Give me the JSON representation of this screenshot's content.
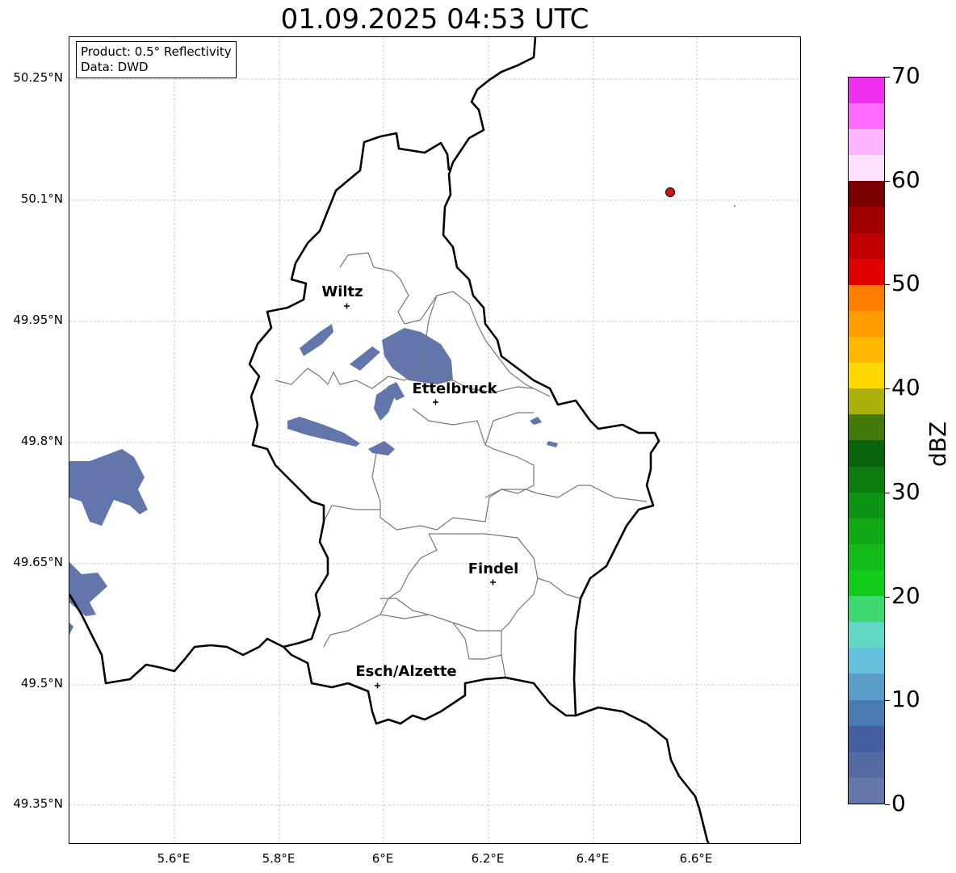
{
  "title": "01.09.2025 04:53 UTC",
  "info": {
    "product": "Product: 0.5° Reflectivity",
    "source": "Data: DWD"
  },
  "lat_labels": [
    "50.25°N",
    "50.1°N",
    "49.95°N",
    "49.8°N",
    "49.65°N",
    "49.5°N",
    "49.35°N"
  ],
  "lon_labels": [
    "5.6°E",
    "5.8°E",
    "6°E",
    "6.2°E",
    "6.4°E",
    "6.6°E"
  ],
  "cities": [
    {
      "name": "Wiltz"
    },
    {
      "name": "Ettelbruck"
    },
    {
      "name": "Findel"
    },
    {
      "name": "Esch/Alzette"
    }
  ],
  "colorbar": {
    "label": "dBZ",
    "ticks": [
      "0",
      "10",
      "20",
      "30",
      "40",
      "50",
      "60",
      "70"
    ],
    "min": 0,
    "max": 70,
    "step": 2.5,
    "colors": [
      "#6577a8",
      "#556aa0",
      "#4560a0",
      "#4a7ab2",
      "#5a9ec8",
      "#65c0dc",
      "#60d8c4",
      "#3dd870",
      "#11cc18",
      "#12bb18",
      "#10a815",
      "#0e9414",
      "#0c7c10",
      "#0a640d",
      "#447a0c",
      "#aab00c",
      "#ffd800",
      "#ffb800",
      "#ff9c00",
      "#ff7e00",
      "#e00000",
      "#c00000",
      "#a00000",
      "#7a0000",
      "#ffe0ff",
      "#ffb4ff",
      "#ff6cff",
      "#ee30ee"
    ]
  },
  "marker_color": "#e01010"
}
